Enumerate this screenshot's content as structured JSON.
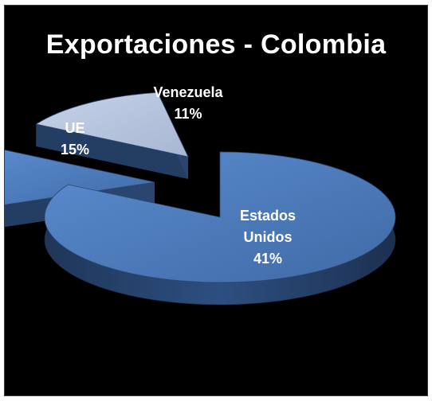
{
  "chart_data": {
    "type": "pie",
    "style": "3d-exploded",
    "title": "Exportaciones - Colombia",
    "slices": [
      {
        "label": "Estados Unidos",
        "label_lines": [
          "Estados",
          "Unidos"
        ],
        "value": 41,
        "value_label": "41%",
        "color": "#4f7fbf"
      },
      {
        "label": "UE",
        "label_lines": [
          "UE"
        ],
        "value": 15,
        "value_label": "15%",
        "color": "#4a78b8"
      },
      {
        "label": "Venezuela",
        "label_lines": [
          "Venezuela"
        ],
        "value": 11,
        "value_label": "11%",
        "color": "#b5c3de"
      }
    ],
    "background": "#000000"
  }
}
